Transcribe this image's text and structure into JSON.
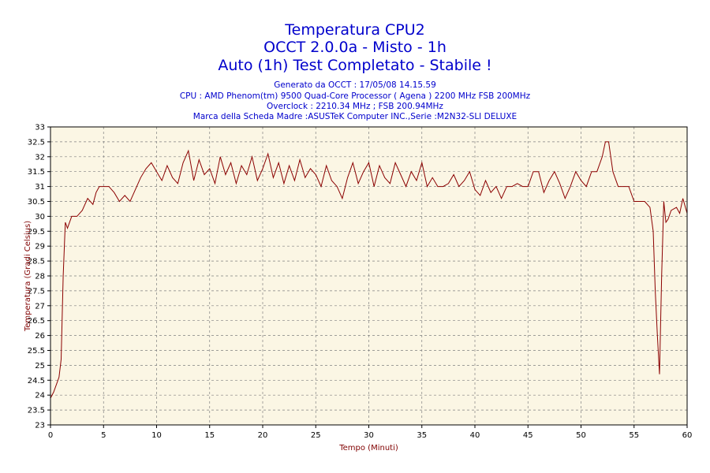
{
  "titles": {
    "line1": "Temperatura CPU2",
    "line2": "OCCT 2.0.0a - Misto - 1h",
    "line3": "Auto (1h) Test Completato - Stabile !"
  },
  "info": {
    "generated": "Generato da OCCT : 17/05/08 14.15.59",
    "cpu": "CPU : AMD Phenom(tm) 9500 Quad-Core Processor ( Agena ) 2200 MHz FSB 200MHz",
    "overclock": "Overclock : 2210.34 MHz ; FSB 200.94MHz",
    "motherboard": "Marca della Scheda Madre :ASUSTeK Computer INC.,Serie :M2N32-SLI DELUXE"
  },
  "colors": {
    "title": "#0000cc",
    "line": "#8b0000",
    "axis_title": "#800000",
    "plot_background": "#fbf6e4",
    "grid": "#808080"
  },
  "chart_data": {
    "type": "line",
    "xlabel": "Tempo (Minuti)",
    "ylabel": "Temperatura (Gradi Celsius)",
    "xlim": [
      0,
      60
    ],
    "ylim": [
      23,
      33
    ],
    "x_ticks": [
      "0",
      "5",
      "10",
      "15",
      "20",
      "25",
      "30",
      "35",
      "40",
      "45",
      "50",
      "55",
      "60"
    ],
    "y_ticks": [
      "23",
      "23.5",
      "24",
      "24.5",
      "25",
      "25.5",
      "26",
      "26.5",
      "27",
      "27.5",
      "28",
      "28.5",
      "29",
      "29.5",
      "30",
      "30.5",
      "31",
      "31.5",
      "32",
      "32.5",
      "33"
    ],
    "grid": true,
    "x": [
      0,
      0.3,
      0.6,
      0.8,
      1.0,
      1.2,
      1.4,
      1.6,
      2.0,
      2.5,
      3.0,
      3.5,
      4.0,
      4.3,
      4.6,
      5.0,
      5.5,
      6.0,
      6.5,
      7.0,
      7.5,
      8.0,
      8.5,
      9.0,
      9.5,
      10.0,
      10.5,
      11.0,
      11.5,
      12.0,
      12.5,
      13.0,
      13.5,
      14.0,
      14.5,
      15.0,
      15.5,
      16.0,
      16.5,
      17.0,
      17.5,
      18.0,
      18.5,
      19.0,
      19.5,
      20.0,
      20.5,
      21.0,
      21.5,
      22.0,
      22.5,
      23.0,
      23.5,
      24.0,
      24.5,
      25.0,
      25.5,
      26.0,
      26.5,
      27.0,
      27.5,
      28.0,
      28.5,
      29.0,
      29.5,
      30.0,
      30.5,
      31.0,
      31.5,
      32.0,
      32.5,
      33.0,
      33.5,
      34.0,
      34.5,
      35.0,
      35.5,
      36.0,
      36.5,
      37.0,
      37.5,
      38.0,
      38.5,
      39.0,
      39.5,
      40.0,
      40.5,
      41.0,
      41.5,
      42.0,
      42.5,
      43.0,
      43.5,
      44.0,
      44.5,
      45.0,
      45.5,
      46.0,
      46.5,
      47.0,
      47.5,
      48.0,
      48.5,
      49.0,
      49.5,
      50.0,
      50.5,
      51.0,
      51.5,
      52.0,
      52.3,
      52.6,
      53.0,
      53.5,
      54.0,
      54.5,
      55.0,
      55.5,
      56.0,
      56.5,
      56.8,
      57.0,
      57.2,
      57.4,
      57.6,
      57.8,
      58.0,
      58.2,
      58.5,
      59.0,
      59.3,
      59.6,
      60.0
    ],
    "series": [
      {
        "values": [
          23.9,
          24.1,
          24.4,
          24.6,
          25.2,
          28.0,
          29.8,
          29.6,
          30.0,
          30.0,
          30.2,
          30.6,
          30.4,
          30.8,
          31.0,
          31.0,
          31.0,
          30.8,
          30.5,
          30.7,
          30.5,
          30.9,
          31.3,
          31.6,
          31.8,
          31.5,
          31.2,
          31.7,
          31.3,
          31.1,
          31.8,
          32.2,
          31.2,
          31.9,
          31.4,
          31.6,
          31.1,
          32.0,
          31.4,
          31.8,
          31.1,
          31.7,
          31.4,
          32.0,
          31.2,
          31.6,
          32.1,
          31.3,
          31.8,
          31.1,
          31.7,
          31.2,
          31.9,
          31.3,
          31.6,
          31.4,
          31.0,
          31.7,
          31.2,
          31.0,
          30.6,
          31.3,
          31.8,
          31.1,
          31.5,
          31.8,
          31.0,
          31.7,
          31.3,
          31.1,
          31.8,
          31.4,
          31.0,
          31.5,
          31.2,
          31.8,
          31.0,
          31.3,
          31.0,
          31.0,
          31.1,
          31.4,
          31.0,
          31.2,
          31.5,
          30.9,
          30.7,
          31.2,
          30.8,
          31.0,
          30.6,
          31.0,
          31.0,
          31.1,
          31.0,
          31.0,
          31.5,
          31.5,
          30.8,
          31.2,
          31.5,
          31.1,
          30.6,
          31.0,
          31.5,
          31.2,
          31.0,
          31.5,
          31.5,
          32.0,
          32.5,
          32.5,
          31.5,
          31.0,
          31.0,
          31.0,
          30.5,
          30.5,
          30.5,
          30.3,
          29.5,
          27.5,
          26.0,
          24.7,
          28.0,
          30.5,
          29.8,
          29.9,
          30.2,
          30.3,
          30.1,
          30.6,
          30.1
        ]
      }
    ]
  }
}
